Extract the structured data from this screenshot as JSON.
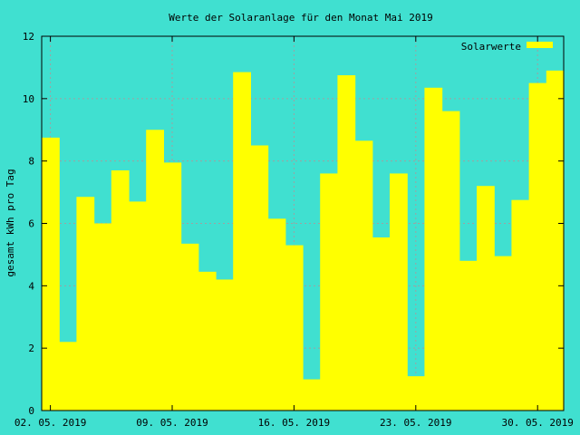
{
  "chart_data": {
    "type": "bar",
    "title": "Werte der Solaranlage für den Monat Mai 2019",
    "xlabel": "",
    "ylabel": "gesamt kWh pro Tag",
    "ylim": [
      0,
      12
    ],
    "yticks": [
      "0",
      "2",
      "4",
      "6",
      "8",
      "10",
      "12"
    ],
    "xticks": [
      {
        "label": "02. 05. 2019",
        "day": 0
      },
      {
        "label": "09. 05. 2019",
        "day": 7
      },
      {
        "label": "16. 05. 2019",
        "day": 14
      },
      {
        "label": "23. 05. 2019",
        "day": 21
      },
      {
        "label": "30. 05. 2019",
        "day": 28
      }
    ],
    "legend": {
      "label": "Solarwerte",
      "position": "top-right"
    },
    "grid": true,
    "colors": {
      "background": "#40e0d0",
      "bar": "#ffff00",
      "grid": "#a0a0a0"
    },
    "series": [
      {
        "name": "Solarwerte",
        "categories": [
          "02.05.",
          "03.05.",
          "04.05.",
          "05.05.",
          "06.05.",
          "07.05.",
          "08.05.",
          "09.05.",
          "10.05.",
          "11.05.",
          "12.05.",
          "13.05.",
          "14.05.",
          "15.05.",
          "16.05.",
          "17.05.",
          "18.05.",
          "19.05.",
          "20.05.",
          "21.05.",
          "22.05.",
          "23.05.",
          "24.05.",
          "25.05.",
          "26.05.",
          "27.05.",
          "28.05.",
          "29.05.",
          "30.05.",
          "31.05."
        ],
        "values": [
          8.75,
          2.2,
          6.85,
          6.0,
          7.7,
          6.7,
          9.0,
          7.95,
          5.35,
          4.45,
          4.2,
          10.85,
          8.5,
          6.15,
          5.3,
          1.0,
          7.6,
          10.75,
          8.65,
          5.55,
          7.6,
          1.1,
          10.35,
          9.6,
          4.8,
          7.2,
          4.95,
          6.75,
          10.5,
          10.9
        ]
      }
    ]
  }
}
